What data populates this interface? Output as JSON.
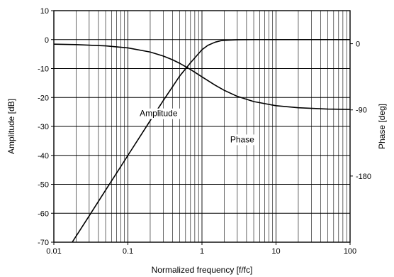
{
  "chart_data": {
    "type": "line",
    "xlabel": "Normalized frequency [f/fc]",
    "ylabel": "Amplitude [dB]",
    "y2label": "Phase [deg]",
    "xscale": "log",
    "xlim": [
      0.01,
      100
    ],
    "ylim": [
      -70,
      10
    ],
    "y2lim": [
      -270,
      45
    ],
    "grid": true,
    "x_ticks": [
      {
        "value": 0.01,
        "label": "0.01"
      },
      {
        "value": 0.1,
        "label": "0.1"
      },
      {
        "value": 1,
        "label": "1"
      },
      {
        "value": 10,
        "label": "10"
      },
      {
        "value": 100,
        "label": "100"
      }
    ],
    "y_ticks": [
      {
        "value": 10,
        "label": "10"
      },
      {
        "value": 0,
        "label": "0"
      },
      {
        "value": -10,
        "label": "-10"
      },
      {
        "value": -20,
        "label": "-20"
      },
      {
        "value": -30,
        "label": "-30"
      },
      {
        "value": -40,
        "label": "-40"
      },
      {
        "value": -50,
        "label": "-50"
      },
      {
        "value": -60,
        "label": "-60"
      },
      {
        "value": -70,
        "label": "-70"
      }
    ],
    "y2_ticks": [
      {
        "value": 0,
        "label": "0"
      },
      {
        "value": -90,
        "label": "-90"
      },
      {
        "value": -180,
        "label": "-180"
      }
    ],
    "series": [
      {
        "name": "Amplitude",
        "axis": "left",
        "x": [
          0.0177,
          0.02,
          0.03,
          0.05,
          0.07,
          0.1,
          0.15,
          0.2,
          0.3,
          0.5,
          0.7,
          1,
          1.2,
          1.5,
          1.8,
          2,
          3,
          5,
          10,
          100
        ],
        "y": [
          -70,
          -67.9,
          -60.9,
          -52.0,
          -46.2,
          -40.0,
          -33.0,
          -28.0,
          -21.1,
          -12.6,
          -8.0,
          -3.5,
          -2.0,
          -0.9,
          -0.4,
          -0.25,
          -0.05,
          0,
          0,
          0
        ]
      },
      {
        "name": "Phase",
        "axis": "right",
        "x": [
          0.01,
          0.02,
          0.05,
          0.1,
          0.2,
          0.3,
          0.4,
          0.5,
          0.7,
          1,
          1.5,
          2,
          3,
          5,
          10,
          20,
          50,
          100
        ],
        "y": [
          -0.6,
          -1.2,
          -2.9,
          -5.7,
          -11.3,
          -16.7,
          -21.8,
          -26.6,
          -35.0,
          -45.0,
          -56.3,
          -63.4,
          -71.6,
          -78.7,
          -84.3,
          -87.1,
          -88.9,
          -89.4
        ]
      }
    ],
    "annotations": [
      {
        "text": "Amplitude",
        "x": 0.26,
        "axis": "left",
        "y": -26.5
      },
      {
        "text": "Phase",
        "x": 3.5,
        "axis": "left",
        "y": -35.5
      }
    ]
  }
}
